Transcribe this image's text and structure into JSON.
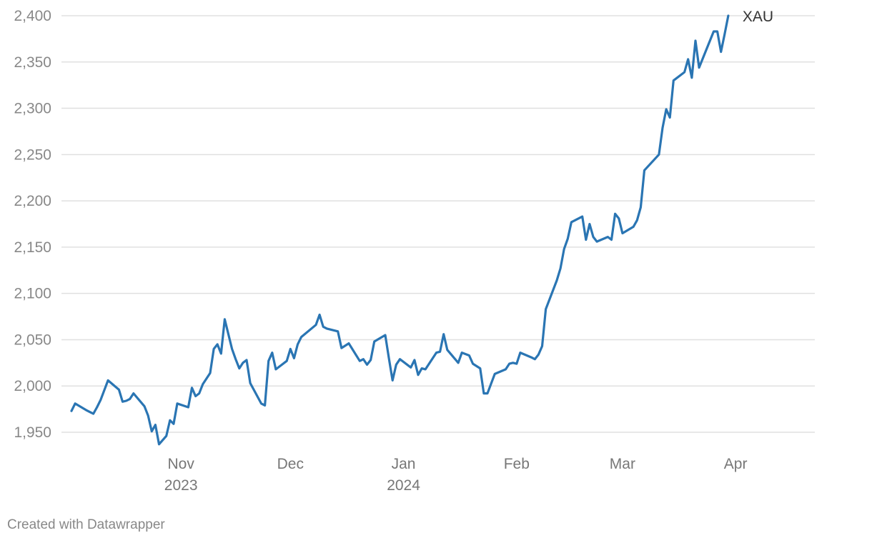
{
  "chart_data": {
    "type": "line",
    "title": "",
    "xlabel": "",
    "ylabel": "",
    "ylim": [
      1940,
      2400
    ],
    "xlim": [
      "2023-10-02",
      "2024-04-19"
    ],
    "grid": true,
    "legend": "none",
    "y_ticks": [
      {
        "value": 1950,
        "label": "1,950"
      },
      {
        "value": 2000,
        "label": "2,000"
      },
      {
        "value": 2050,
        "label": "2,050"
      },
      {
        "value": 2100,
        "label": "2,100"
      },
      {
        "value": 2150,
        "label": "2,150"
      },
      {
        "value": 2200,
        "label": "2,200"
      },
      {
        "value": 2250,
        "label": "2,250"
      },
      {
        "value": 2300,
        "label": "2,300"
      },
      {
        "value": 2350,
        "label": "2,350"
      },
      {
        "value": 2400,
        "label": "2,400"
      }
    ],
    "x_ticks": [
      {
        "date": "2023-11-01",
        "label": "Nov",
        "sublabel": "2023"
      },
      {
        "date": "2023-12-01",
        "label": "Dec",
        "sublabel": ""
      },
      {
        "date": "2024-01-01",
        "label": "Jan",
        "sublabel": "2024"
      },
      {
        "date": "2024-02-01",
        "label": "Feb",
        "sublabel": ""
      },
      {
        "date": "2024-03-01",
        "label": "Mar",
        "sublabel": ""
      },
      {
        "date": "2024-04-01",
        "label": "Apr",
        "sublabel": ""
      }
    ],
    "series": [
      {
        "name": "XAU",
        "color": "#2a75b3",
        "points": [
          [
            "2023-10-02",
            1973
          ],
          [
            "2023-10-03",
            1981
          ],
          [
            "2023-10-06",
            1974
          ],
          [
            "2023-10-08",
            1970
          ],
          [
            "2023-10-09",
            1977
          ],
          [
            "2023-10-10",
            1985
          ],
          [
            "2023-10-12",
            2006
          ],
          [
            "2023-10-15",
            1996
          ],
          [
            "2023-10-16",
            1983
          ],
          [
            "2023-10-17",
            1984
          ],
          [
            "2023-10-18",
            1986
          ],
          [
            "2023-10-19",
            1992
          ],
          [
            "2023-10-22",
            1978
          ],
          [
            "2023-10-23",
            1968
          ],
          [
            "2023-10-24",
            1951
          ],
          [
            "2023-10-25",
            1958
          ],
          [
            "2023-10-26",
            1937
          ],
          [
            "2023-10-28",
            1946
          ],
          [
            "2023-10-29",
            1963
          ],
          [
            "2023-10-30",
            1959
          ],
          [
            "2023-10-31",
            1981
          ],
          [
            "2023-11-03",
            1977
          ],
          [
            "2023-11-04",
            1998
          ],
          [
            "2023-11-05",
            1989
          ],
          [
            "2023-11-06",
            1992
          ],
          [
            "2023-11-07",
            2002
          ],
          [
            "2023-11-09",
            2014
          ],
          [
            "2023-11-10",
            2040
          ],
          [
            "2023-11-11",
            2045
          ],
          [
            "2023-11-12",
            2035
          ],
          [
            "2023-11-13",
            2072
          ],
          [
            "2023-11-15",
            2040
          ],
          [
            "2023-11-16",
            2029
          ],
          [
            "2023-11-17",
            2019
          ],
          [
            "2023-11-18",
            2025
          ],
          [
            "2023-11-19",
            2028
          ],
          [
            "2023-11-20",
            2003
          ],
          [
            "2023-11-23",
            1981
          ],
          [
            "2023-11-24",
            1979
          ],
          [
            "2023-11-25",
            2027
          ],
          [
            "2023-11-26",
            2036
          ],
          [
            "2023-11-27",
            2018
          ],
          [
            "2023-11-30",
            2027
          ],
          [
            "2023-12-01",
            2040
          ],
          [
            "2023-12-02",
            2030
          ],
          [
            "2023-12-03",
            2045
          ],
          [
            "2023-12-04",
            2053
          ],
          [
            "2023-12-08",
            2066
          ],
          [
            "2023-12-09",
            2077
          ],
          [
            "2023-12-10",
            2064
          ],
          [
            "2023-12-11",
            2062
          ],
          [
            "2023-12-14",
            2059
          ],
          [
            "2023-12-15",
            2041
          ],
          [
            "2023-12-17",
            2046
          ],
          [
            "2023-12-20",
            2027
          ],
          [
            "2023-12-21",
            2029
          ],
          [
            "2023-12-22",
            2023
          ],
          [
            "2023-12-23",
            2028
          ],
          [
            "2023-12-24",
            2048
          ],
          [
            "2023-12-27",
            2055
          ],
          [
            "2023-12-28",
            2030
          ],
          [
            "2023-12-29",
            2006
          ],
          [
            "2023-12-30",
            2023
          ],
          [
            "2023-12-31",
            2029
          ],
          [
            "2024-01-03",
            2020
          ],
          [
            "2024-01-04",
            2028
          ],
          [
            "2024-01-05",
            2012
          ],
          [
            "2024-01-06",
            2019
          ],
          [
            "2024-01-07",
            2018
          ],
          [
            "2024-01-10",
            2036
          ],
          [
            "2024-01-11",
            2037
          ],
          [
            "2024-01-12",
            2056
          ],
          [
            "2024-01-13",
            2039
          ],
          [
            "2024-01-16",
            2025
          ],
          [
            "2024-01-17",
            2036
          ],
          [
            "2024-01-19",
            2033
          ],
          [
            "2024-01-20",
            2024
          ],
          [
            "2024-01-22",
            2019
          ],
          [
            "2024-01-23",
            1992
          ],
          [
            "2024-01-24",
            1992
          ],
          [
            "2024-01-26",
            2013
          ],
          [
            "2024-01-29",
            2018
          ],
          [
            "2024-01-30",
            2024
          ],
          [
            "2024-01-31",
            2025
          ],
          [
            "2024-02-01",
            2024
          ],
          [
            "2024-02-02",
            2036
          ],
          [
            "2024-02-05",
            2031
          ],
          [
            "2024-02-06",
            2029
          ],
          [
            "2024-02-07",
            2034
          ],
          [
            "2024-02-08",
            2043
          ],
          [
            "2024-02-09",
            2083
          ],
          [
            "2024-02-12",
            2114
          ],
          [
            "2024-02-13",
            2127
          ],
          [
            "2024-02-14",
            2148
          ],
          [
            "2024-02-15",
            2159
          ],
          [
            "2024-02-16",
            2177
          ],
          [
            "2024-02-19",
            2183
          ],
          [
            "2024-02-20",
            2158
          ],
          [
            "2024-02-21",
            2175
          ],
          [
            "2024-02-22",
            2161
          ],
          [
            "2024-02-23",
            2156
          ],
          [
            "2024-02-26",
            2161
          ],
          [
            "2024-02-27",
            2158
          ],
          [
            "2024-02-28",
            2186
          ],
          [
            "2024-02-29",
            2181
          ],
          [
            "2024-03-01",
            2165
          ],
          [
            "2024-03-04",
            2172
          ],
          [
            "2024-03-05",
            2179
          ],
          [
            "2024-03-06",
            2193
          ],
          [
            "2024-03-07",
            2233
          ],
          [
            "2024-03-11",
            2250
          ],
          [
            "2024-03-12",
            2279
          ],
          [
            "2024-03-13",
            2299
          ],
          [
            "2024-03-14",
            2290
          ],
          [
            "2024-03-15",
            2330
          ],
          [
            "2024-03-18",
            2339
          ],
          [
            "2024-03-19",
            2353
          ],
          [
            "2024-03-20",
            2333
          ],
          [
            "2024-03-21",
            2373
          ],
          [
            "2024-03-22",
            2344
          ],
          [
            "2024-03-26",
            2383
          ],
          [
            "2024-03-27",
            2383
          ],
          [
            "2024-03-28",
            2361
          ],
          [
            "2024-03-29",
            2380
          ],
          [
            "2024-03-30",
            2400
          ]
        ]
      }
    ]
  },
  "footer": {
    "credit": "Created with Datawrapper"
  }
}
